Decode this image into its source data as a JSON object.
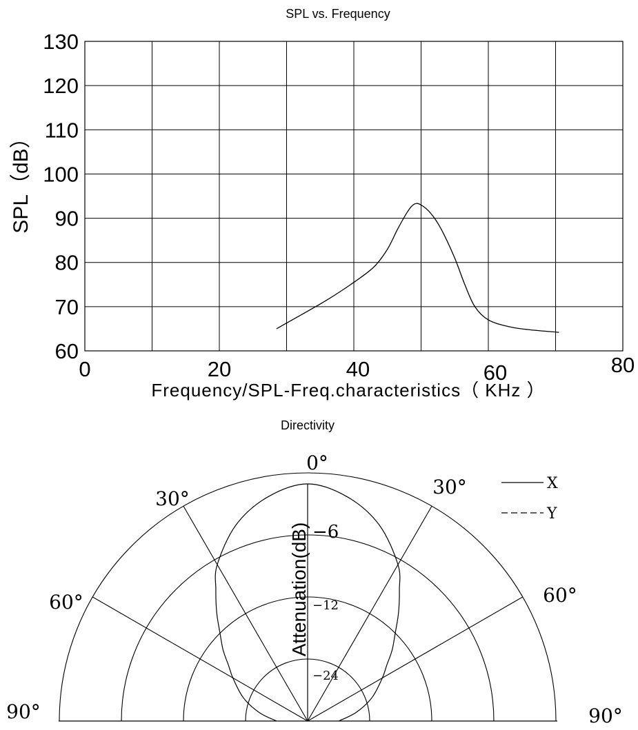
{
  "chart_data": [
    {
      "type": "line",
      "title": "SPL vs. Frequency",
      "xlabel": "Frequency/SPL-Freq.characteristics（ KHz ）",
      "ylabel": "SPL（dB）",
      "xlim": [
        0,
        80
      ],
      "ylim": [
        60,
        130
      ],
      "x_ticks": [
        {
          "value": 0,
          "label": "0"
        },
        {
          "value": 20,
          "label": "20"
        },
        {
          "value": 40,
          "label": "40"
        },
        {
          "value": 60,
          "label": "60"
        },
        {
          "value": 80,
          "label": "80"
        }
      ],
      "y_ticks": [
        {
          "value": 60,
          "label": "60"
        },
        {
          "value": 70,
          "label": "70"
        },
        {
          "value": 80,
          "label": "80"
        },
        {
          "value": 90,
          "label": "90"
        },
        {
          "value": 100,
          "label": "100"
        },
        {
          "value": 110,
          "label": "110"
        },
        {
          "value": 120,
          "label": "120"
        },
        {
          "value": 130,
          "label": "130"
        }
      ],
      "grid": true,
      "series": [
        {
          "x": [
            28.5,
            32,
            36,
            40,
            43,
            45,
            46.5,
            48,
            49,
            50,
            51.5,
            53,
            55,
            56.5,
            58,
            60,
            63,
            66,
            70.5
          ],
          "y": [
            65,
            68,
            71.5,
            75.5,
            79,
            83,
            87.5,
            91.5,
            93.2,
            93,
            91,
            87.5,
            81,
            75,
            70,
            67,
            65.5,
            64.8,
            64.2
          ],
          "color": "#000000"
        }
      ]
    },
    {
      "type": "polar",
      "title": "Directivity",
      "ylabel": "Attenuation(dB)",
      "angle_labels": [
        {
          "angle": 0,
          "label": "0°"
        },
        {
          "angle": -30,
          "label": "30°"
        },
        {
          "angle": 30,
          "label": "30°"
        },
        {
          "angle": -60,
          "label": "60°"
        },
        {
          "angle": 60,
          "label": "60°"
        },
        {
          "angle": -90,
          "label": "90°"
        },
        {
          "angle": 90,
          "label": "90°"
        }
      ],
      "radial_labels": [
        {
          "db": -6,
          "label": "−6"
        },
        {
          "db": -12,
          "label": "−12"
        },
        {
          "db": -24,
          "label": "−24"
        }
      ],
      "legend": {
        "position": "top-right",
        "items": [
          {
            "label": "X",
            "style": "solid"
          },
          {
            "label": "Y",
            "style": "dashed"
          }
        ]
      },
      "series": [
        {
          "name": "X",
          "angles": [
            -90,
            -80,
            -70,
            -60,
            -55,
            -50,
            -45,
            -40,
            -35,
            -30,
            -20,
            -10,
            0,
            10,
            20,
            30,
            35,
            40,
            45,
            50,
            55,
            60,
            70,
            80,
            90
          ],
          "db": [
            -28,
            -24.5,
            -21,
            -17.8,
            -16,
            -13.5,
            -11.5,
            -9.8,
            -8,
            -6,
            -3,
            -1,
            0,
            -1,
            -3,
            -6,
            -8,
            -9.8,
            -11.5,
            -13.5,
            -16,
            -17.8,
            -21,
            -24.5,
            -28
          ]
        }
      ]
    }
  ]
}
